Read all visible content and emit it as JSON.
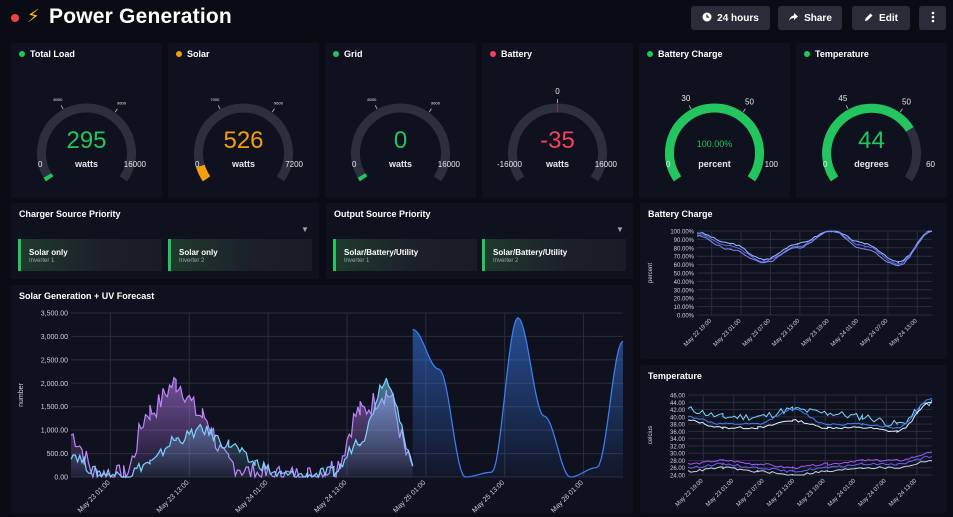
{
  "header": {
    "title": "Power Generation",
    "title_icon": "⚡",
    "buttons": {
      "time_range": "24 hours",
      "share": "Share",
      "edit": "Edit"
    }
  },
  "gauges": [
    {
      "title": "Total Load",
      "status_color": "#22c55e",
      "value": "295",
      "unit": "watts",
      "min": "0",
      "max": "16000",
      "value_num": 295,
      "max_num": 16000,
      "min_num": 0,
      "value_color": "#22c55e",
      "arc_color": "#22c55e",
      "ticks": [
        "8000",
        "9600"
      ]
    },
    {
      "title": "Solar",
      "status_color": "#f59e0b",
      "value": "526",
      "unit": "watts",
      "min": "0",
      "max": "7200",
      "value_num": 526,
      "max_num": 7200,
      "min_num": 0,
      "value_color": "#f59e0b",
      "arc_color": "#f59e0b",
      "ticks": [
        "7000",
        "9600"
      ]
    },
    {
      "title": "Grid",
      "status_color": "#22c55e",
      "value": "0",
      "unit": "watts",
      "min": "0",
      "max": "16000",
      "value_num": 0,
      "max_num": 16000,
      "min_num": 0,
      "value_color": "#22c55e",
      "arc_color": "#22c55e",
      "ticks": [
        "8000",
        "9600"
      ]
    },
    {
      "title": "Battery",
      "status_color": "#f43f5e",
      "value": "-35",
      "unit": "watts",
      "min": "-16000",
      "max": "16000",
      "value_num": -35,
      "max_num": 16000,
      "min_num": -16000,
      "value_color": "#f43f5e",
      "arc_color": "#f43f5e",
      "ticks": [
        "0"
      ]
    },
    {
      "title": "Battery Charge",
      "status_color": "#22c55e",
      "value": "100.00%",
      "unit": "percent",
      "min": "0",
      "max": "100",
      "value_num": 100,
      "max_num": 100,
      "min_num": 0,
      "value_color": "#22c55e",
      "arc_color": "#22c55e",
      "ticks": [
        "30",
        "50"
      ]
    },
    {
      "title": "Temperature",
      "status_color": "#22c55e",
      "value": "44",
      "unit": "degrees",
      "min": "0",
      "max": "60",
      "value_num": 44,
      "max_num": 60,
      "min_num": 0,
      "value_color": "#22c55e",
      "arc_color": "#22c55e",
      "ticks": [
        "45",
        "50"
      ]
    }
  ],
  "charger_priority": {
    "title": "Charger Source Priority",
    "cards": [
      {
        "label": "Solar only",
        "sub": "Inverter 1"
      },
      {
        "label": "Solar only",
        "sub": "Inverter 2"
      }
    ]
  },
  "output_priority": {
    "title": "Output Source Priority",
    "cards": [
      {
        "label": "Solar/Battery/Utility",
        "sub": "Inverter 1"
      },
      {
        "label": "Solar/Battery/Utility",
        "sub": "Inverter 2"
      }
    ]
  },
  "solar_chart": {
    "title": "Solar Generation + UV Forecast",
    "ylabel": "number",
    "y_ticks": [
      "0.00",
      "500.00",
      "1,000.00",
      "1,500.00",
      "2,000.00",
      "2,500.00",
      "3,000.00",
      "3,500.00"
    ],
    "x_ticks": [
      "May 23 01:00",
      "May 23 13:00",
      "May 24 01:00",
      "May 24 13:00",
      "May 25 01:00",
      "May 25 13:00",
      "May 26 01:00"
    ],
    "colors": {
      "solar": "#c084fc",
      "load": "#7dd3fc",
      "uv": "#3b82f6"
    }
  },
  "battery_chart": {
    "title": "Battery Charge",
    "ylabel": "percent",
    "y_ticks": [
      "0.00%",
      "10.00%",
      "20.00%",
      "30.00%",
      "40.00%",
      "50.00%",
      "60.00%",
      "70.00%",
      "80.00%",
      "90.00%",
      "100.00%"
    ],
    "x_ticks": [
      "May 22 19:00",
      "May 23 01:00",
      "May 23 07:00",
      "May 23 13:00",
      "May 23 19:00",
      "May 24 01:00",
      "May 24 07:00",
      "May 24 13:00"
    ]
  },
  "temperature_chart": {
    "title": "Temperature",
    "ylabel": "celcius",
    "y_ticks": [
      "24.00",
      "26.00",
      "28.00",
      "30.00",
      "32.00",
      "34.00",
      "36.00",
      "38.00",
      "40.00",
      "42.00",
      "44.00",
      "46.00"
    ],
    "x_ticks": [
      "May 22 19:00",
      "May 23 01:00",
      "May 23 07:00",
      "May 23 13:00",
      "May 23 19:00",
      "May 24 01:00",
      "May 24 07:00",
      "May 24 13:00"
    ]
  },
  "chart_data": [
    {
      "type": "area",
      "title": "Solar Generation + UV Forecast",
      "xlabel": "",
      "ylabel": "number",
      "ylim": [
        0,
        3500
      ],
      "x": [
        "May 22 19:00",
        "May 23 01:00",
        "May 23 07:00",
        "May 23 09:00",
        "May 23 11:00",
        "May 23 13:00",
        "May 23 15:00",
        "May 23 17:00",
        "May 23 19:00",
        "May 24 01:00",
        "May 24 07:00",
        "May 24 09:00",
        "May 24 11:00",
        "May 24 13:00",
        "May 24 19:00",
        "May 25 01:00",
        "May 25 07:00",
        "May 25 13:00",
        "May 25 19:00",
        "May 26 01:00",
        "May 26 07:00",
        "May 26 13:00"
      ],
      "series": [
        {
          "values": [
            900,
            50,
            20,
            1400,
            2000,
            1300,
            300,
            60,
            20,
            20,
            200,
            1400,
            1800,
            250,
            null,
            null,
            null,
            null,
            null,
            null,
            null,
            null
          ]
        },
        {
          "values": [
            500,
            100,
            30,
            300,
            800,
            1000,
            700,
            300,
            40,
            30,
            100,
            800,
            2100,
            350,
            null,
            null,
            null,
            null,
            null,
            null,
            null,
            null
          ]
        },
        {
          "values": [
            null,
            null,
            null,
            null,
            null,
            null,
            null,
            null,
            null,
            null,
            null,
            null,
            null,
            3150,
            2300,
            0,
            100,
            3400,
            1300,
            0,
            200,
            2900
          ]
        }
      ]
    },
    {
      "type": "line",
      "title": "Battery Charge",
      "ylabel": "percent",
      "ylim": [
        0,
        100
      ],
      "x": [
        "May 22 19:00",
        "May 23 01:00",
        "May 23 07:00",
        "May 23 13:00",
        "May 23 19:00",
        "May 24 01:00",
        "May 24 07:00",
        "May 24 13:00"
      ],
      "series": [
        {
          "values": [
            98,
            85,
            66,
            85,
            100,
            85,
            63,
            100
          ]
        },
        {
          "values": [
            96,
            82,
            64,
            82,
            100,
            82,
            61,
            100
          ]
        },
        {
          "values": [
            94,
            78,
            62,
            80,
            100,
            78,
            59,
            100
          ]
        }
      ]
    },
    {
      "type": "line",
      "title": "Temperature",
      "ylabel": "celcius",
      "ylim": [
        24,
        46
      ],
      "x": [
        "May 22 19:00",
        "May 23 01:00",
        "May 23 07:00",
        "May 23 13:00",
        "May 23 19:00",
        "May 24 01:00",
        "May 24 07:00",
        "May 24 13:00"
      ],
      "series": [
        {
          "values": [
            42,
            40,
            40,
            42,
            41,
            40,
            38,
            44
          ]
        },
        {
          "values": [
            40,
            38,
            38,
            42,
            38,
            38,
            37,
            45
          ]
        },
        {
          "values": [
            39,
            37,
            37,
            39,
            37,
            37,
            36,
            44
          ]
        },
        {
          "values": [
            27,
            28,
            27,
            26,
            27,
            28,
            28,
            30
          ]
        },
        {
          "values": [
            26,
            27,
            26,
            25,
            26,
            27,
            27,
            29
          ]
        },
        {
          "values": [
            25,
            26,
            25,
            24,
            25,
            26,
            26,
            28
          ]
        }
      ]
    }
  ]
}
